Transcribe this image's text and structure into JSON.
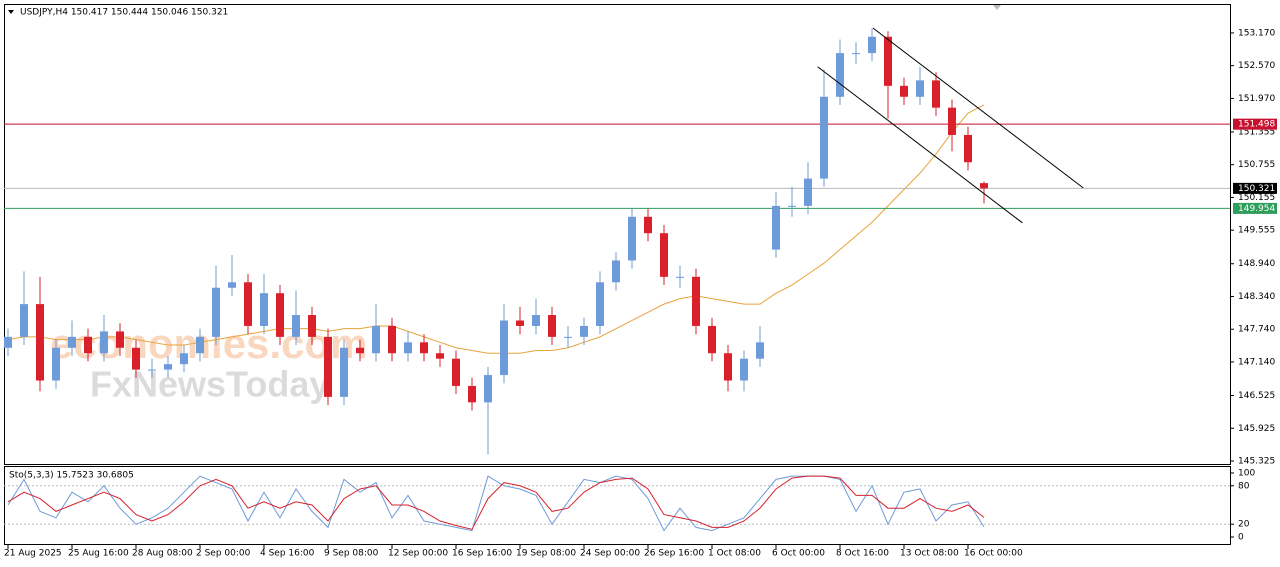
{
  "chart_data": [
    {
      "type": "candlestick",
      "title": "USDJPY,H4  150.417 150.444 150.046 150.321",
      "watermarks": [
        "economies.com",
        "FxNewsToday"
      ],
      "categories": [
        "21 Aug 2025",
        null,
        null,
        null,
        "25 Aug 16:00",
        null,
        null,
        null,
        "28 Aug 08:00",
        null,
        null,
        null,
        "2 Sep 00:00",
        null,
        null,
        null,
        "4 Sep 16:00",
        null,
        null,
        null,
        "9 Sep 08:00",
        null,
        null,
        null,
        "12 Sep 00:00",
        null,
        null,
        null,
        "16 Sep 16:00",
        null,
        null,
        null,
        "19 Sep 08:00",
        null,
        null,
        null,
        "24 Sep 00:00",
        null,
        null,
        null,
        "26 Sep 16:00",
        null,
        null,
        null,
        "1 Oct 08:00",
        null,
        null,
        null,
        "6 Oct 00:00",
        null,
        null,
        null,
        "8 Oct 16:00",
        null,
        null,
        null,
        "13 Oct 08:00",
        null,
        null,
        null,
        "16 Oct 00:00",
        null
      ],
      "open": [
        147.4,
        147.6,
        148.2,
        146.8,
        147.4,
        147.6,
        147.3,
        147.7,
        147.4,
        147.0,
        147.0,
        147.1,
        147.3,
        147.6,
        148.5,
        148.6,
        147.8,
        148.4,
        147.6,
        148.0,
        147.6,
        146.5,
        147.4,
        147.3,
        147.8,
        147.3,
        147.5,
        147.3,
        147.2,
        146.7,
        146.4,
        146.9,
        147.9,
        147.8,
        148.0,
        147.6,
        147.6,
        147.8,
        148.6,
        149.0,
        149.8,
        149.5,
        148.7,
        148.7,
        147.8,
        147.3,
        146.8,
        147.2,
        149.2,
        150.0,
        150.0,
        150.5,
        152.0,
        152.8,
        152.8,
        153.1,
        152.2,
        152.0,
        152.3,
        151.8,
        151.3,
        150.417
      ],
      "high": [
        147.75,
        148.8,
        148.7,
        147.55,
        147.9,
        147.75,
        148.0,
        147.85,
        147.55,
        147.2,
        147.25,
        147.45,
        147.75,
        148.9,
        149.1,
        148.75,
        148.75,
        148.55,
        148.45,
        148.15,
        147.75,
        147.55,
        147.55,
        148.2,
        147.95,
        147.7,
        147.65,
        147.45,
        147.35,
        146.85,
        147.05,
        148.2,
        148.15,
        148.3,
        148.15,
        147.8,
        147.95,
        148.8,
        149.15,
        149.95,
        149.95,
        149.65,
        148.9,
        148.85,
        147.95,
        147.45,
        147.35,
        147.8,
        150.25,
        150.35,
        150.8,
        152.5,
        153.05,
        153.0,
        153.25,
        153.2,
        152.35,
        152.55,
        152.45,
        151.95,
        151.45,
        150.444
      ],
      "low": [
        147.25,
        147.45,
        146.6,
        146.65,
        147.25,
        147.15,
        147.15,
        147.25,
        146.85,
        146.85,
        146.85,
        146.95,
        147.15,
        147.45,
        148.35,
        147.65,
        147.65,
        147.45,
        147.45,
        147.45,
        146.35,
        146.35,
        147.15,
        147.15,
        147.15,
        147.15,
        147.15,
        147.05,
        146.55,
        146.25,
        145.45,
        146.75,
        147.65,
        147.65,
        147.45,
        147.4,
        147.45,
        147.65,
        148.45,
        148.85,
        149.35,
        148.55,
        148.5,
        147.65,
        147.15,
        146.6,
        146.6,
        147.05,
        149.05,
        149.8,
        149.85,
        150.35,
        151.85,
        152.6,
        152.65,
        151.6,
        151.85,
        151.85,
        151.65,
        151.0,
        150.65,
        150.046
      ],
      "close": [
        147.6,
        148.2,
        146.8,
        147.4,
        147.6,
        147.3,
        147.7,
        147.4,
        147.0,
        147.0,
        147.1,
        147.3,
        147.6,
        148.5,
        148.6,
        147.8,
        148.4,
        147.6,
        148.0,
        147.6,
        146.5,
        147.4,
        147.3,
        147.8,
        147.3,
        147.5,
        147.3,
        147.2,
        146.7,
        146.4,
        146.9,
        147.9,
        147.8,
        148.0,
        147.6,
        147.6,
        147.8,
        148.6,
        149.0,
        149.8,
        149.5,
        148.7,
        148.7,
        147.8,
        147.3,
        146.8,
        147.2,
        147.5,
        150.0,
        150.0,
        150.5,
        152.0,
        152.8,
        152.8,
        153.1,
        152.2,
        152.0,
        152.3,
        151.8,
        151.3,
        150.8,
        150.321
      ],
      "up_color": "#6d9bd9",
      "down_color": "#d9202b",
      "overlay_line": {
        "color": "#e8a33a",
        "values": [
          147.55,
          147.6,
          147.6,
          147.55,
          147.55,
          147.55,
          147.6,
          147.6,
          147.55,
          147.5,
          147.45,
          147.45,
          147.5,
          147.55,
          147.6,
          147.65,
          147.7,
          147.75,
          147.75,
          147.75,
          147.7,
          147.75,
          147.75,
          147.8,
          147.8,
          147.7,
          147.6,
          147.5,
          147.4,
          147.35,
          147.3,
          147.3,
          147.3,
          147.35,
          147.35,
          147.4,
          147.5,
          147.6,
          147.75,
          147.9,
          148.05,
          148.2,
          148.3,
          148.35,
          148.3,
          148.25,
          148.2,
          148.2,
          148.4,
          148.55,
          148.75,
          148.95,
          149.2,
          149.45,
          149.7,
          150.0,
          150.3,
          150.6,
          150.95,
          151.35,
          151.7,
          151.85
        ]
      },
      "trendlines": [
        {
          "x": [
            54.06,
            67.2
          ],
          "y": [
            153.26,
            150.33
          ],
          "color": "#000000"
        },
        {
          "x": [
            50.6,
            63.4
          ],
          "y": [
            152.55,
            149.69
          ],
          "color": "#000000"
        }
      ],
      "levels": [
        {
          "value": 151.498,
          "color": "#c8102e"
        },
        {
          "value": 149.954,
          "color": "#2e9e5b"
        },
        {
          "value": 150.321,
          "color": "#000000"
        }
      ],
      "ylim": [
        145.27,
        153.7
      ],
      "yticks": [
        {
          "value": 153.17,
          "label": "153.170"
        },
        {
          "value": 152.57,
          "label": "152.570"
        },
        {
          "value": 151.97,
          "label": "151.970"
        },
        151.355,
        150.755,
        150.155,
        149.555,
        {
          "value": 148.94,
          "label": "148.940"
        },
        {
          "value": 148.34,
          "label": "148.340"
        },
        {
          "value": 147.74,
          "label": "147.740"
        },
        {
          "value": 147.14,
          "label": "147.140"
        },
        146.525,
        145.925,
        145.325
      ],
      "grid": false
    },
    {
      "type": "line",
      "title": "Sto(5,3,3) 15.7523 30.6805",
      "series": [
        {
          "color": "#6d9bd9",
          "values": [
            50,
            90,
            40,
            30,
            70,
            55,
            80,
            45,
            20,
            30,
            45,
            70,
            95,
            85,
            75,
            25,
            70,
            30,
            75,
            40,
            15,
            90,
            70,
            85,
            30,
            65,
            25,
            20,
            15,
            10,
            95,
            80,
            75,
            65,
            20,
            55,
            90,
            85,
            95,
            90,
            60,
            10,
            45,
            15,
            10,
            20,
            30,
            60,
            90,
            95,
            95,
            95,
            90,
            40,
            80,
            20,
            70,
            75,
            25,
            50,
            55,
            15.7523
          ]
        },
        {
          "color": "#d9202b",
          "values": [
            55,
            70,
            60,
            40,
            50,
            60,
            70,
            60,
            35,
            25,
            35,
            55,
            80,
            90,
            80,
            45,
            55,
            45,
            55,
            50,
            25,
            60,
            75,
            80,
            50,
            50,
            40,
            25,
            18,
            12,
            60,
            85,
            80,
            70,
            40,
            45,
            70,
            85,
            90,
            92,
            75,
            35,
            30,
            25,
            15,
            15,
            25,
            45,
            75,
            92,
            95,
            95,
            92,
            65,
            65,
            45,
            45,
            60,
            45,
            40,
            50,
            30.6805
          ]
        }
      ],
      "level_lines": [
        80,
        20
      ],
      "ylim": [
        -12.5,
        110.9
      ],
      "yticks": [
        100,
        80,
        20,
        0
      ],
      "grid": false
    }
  ]
}
